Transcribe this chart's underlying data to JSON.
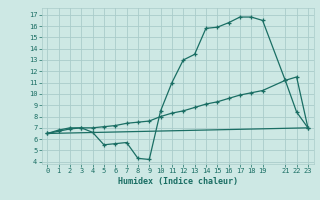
{
  "title": "",
  "xlabel": "Humidex (Indice chaleur)",
  "ylabel": "",
  "bg_color": "#cde8e4",
  "grid_color": "#aaccca",
  "line_color": "#1a6e64",
  "xlim": [
    -0.5,
    23.5
  ],
  "ylim": [
    3.8,
    17.6
  ],
  "xticks": [
    0,
    1,
    2,
    3,
    4,
    5,
    6,
    7,
    8,
    9,
    10,
    11,
    12,
    13,
    14,
    15,
    16,
    17,
    18,
    19,
    21,
    22,
    23
  ],
  "yticks": [
    4,
    5,
    6,
    7,
    8,
    9,
    10,
    11,
    12,
    13,
    14,
    15,
    16,
    17
  ],
  "line1_x": [
    0,
    1,
    2,
    3,
    4,
    5,
    6,
    7,
    8,
    9,
    10,
    11,
    12,
    13,
    14,
    15,
    16,
    17,
    18,
    19,
    21,
    22,
    23
  ],
  "line1_y": [
    6.5,
    6.8,
    7.0,
    7.0,
    6.6,
    5.5,
    5.6,
    5.7,
    4.3,
    4.2,
    8.5,
    11.0,
    13.0,
    13.5,
    15.8,
    15.9,
    16.3,
    16.8,
    16.8,
    16.5,
    11.2,
    8.4,
    7.0
  ],
  "line2_x": [
    0,
    1,
    2,
    3,
    4,
    5,
    6,
    7,
    8,
    9,
    10,
    11,
    12,
    13,
    14,
    15,
    16,
    17,
    18,
    19,
    21,
    22,
    23
  ],
  "line2_y": [
    6.5,
    6.7,
    6.9,
    7.0,
    7.0,
    7.1,
    7.2,
    7.4,
    7.5,
    7.6,
    8.0,
    8.3,
    8.5,
    8.8,
    9.1,
    9.3,
    9.6,
    9.9,
    10.1,
    10.3,
    11.2,
    11.5,
    7.0
  ],
  "line3_x": [
    0,
    23
  ],
  "line3_y": [
    6.5,
    7.0
  ]
}
